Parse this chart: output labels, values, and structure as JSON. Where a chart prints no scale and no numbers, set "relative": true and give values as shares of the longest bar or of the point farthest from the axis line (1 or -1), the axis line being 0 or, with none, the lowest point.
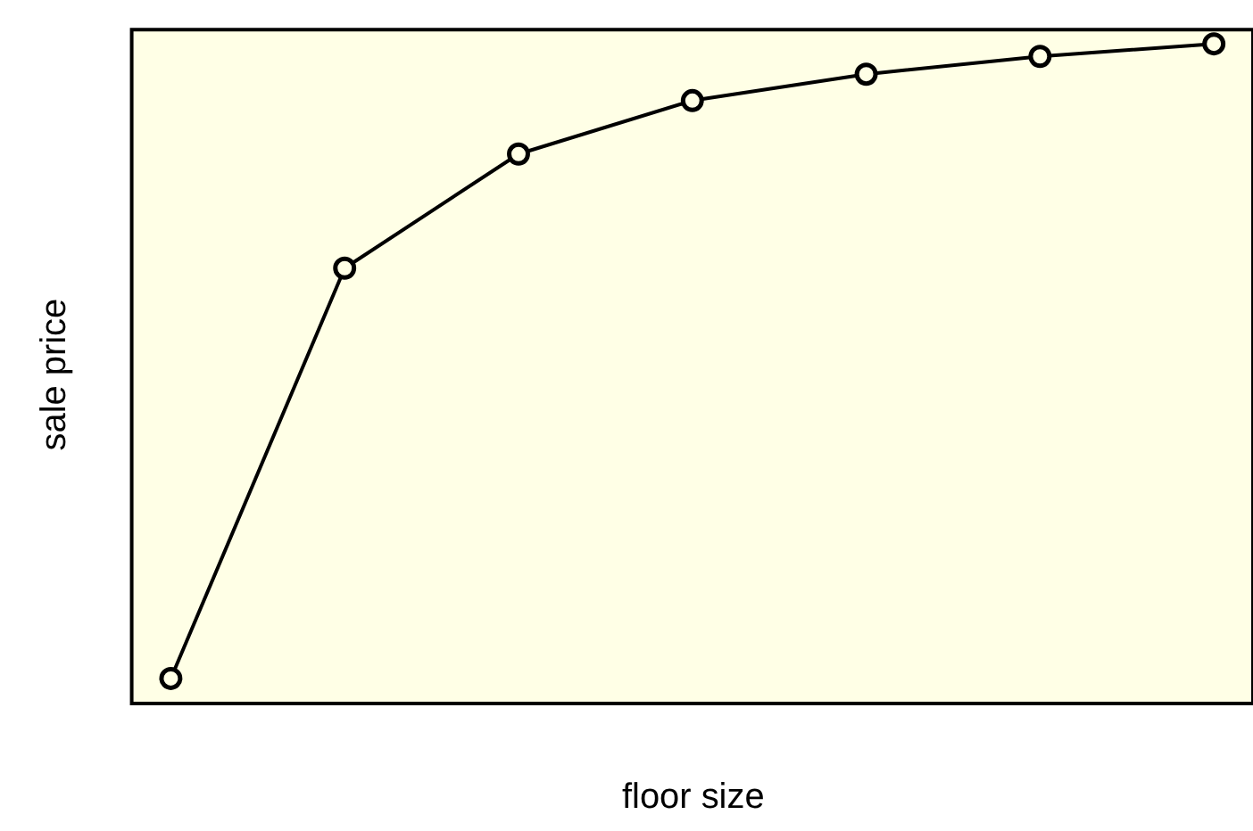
{
  "chart_data": {
    "type": "line",
    "xlabel": "floor size",
    "ylabel": "sale price",
    "relative": true,
    "categories": [
      null,
      null,
      null,
      null,
      null,
      null,
      null
    ],
    "series": [
      {
        "color": "#000000",
        "values": [
          0.038,
          0.66,
          0.833,
          0.914,
          0.954,
          0.981,
          1.0
        ]
      }
    ],
    "marker": "circle",
    "line_style": "solid",
    "grid": false
  }
}
